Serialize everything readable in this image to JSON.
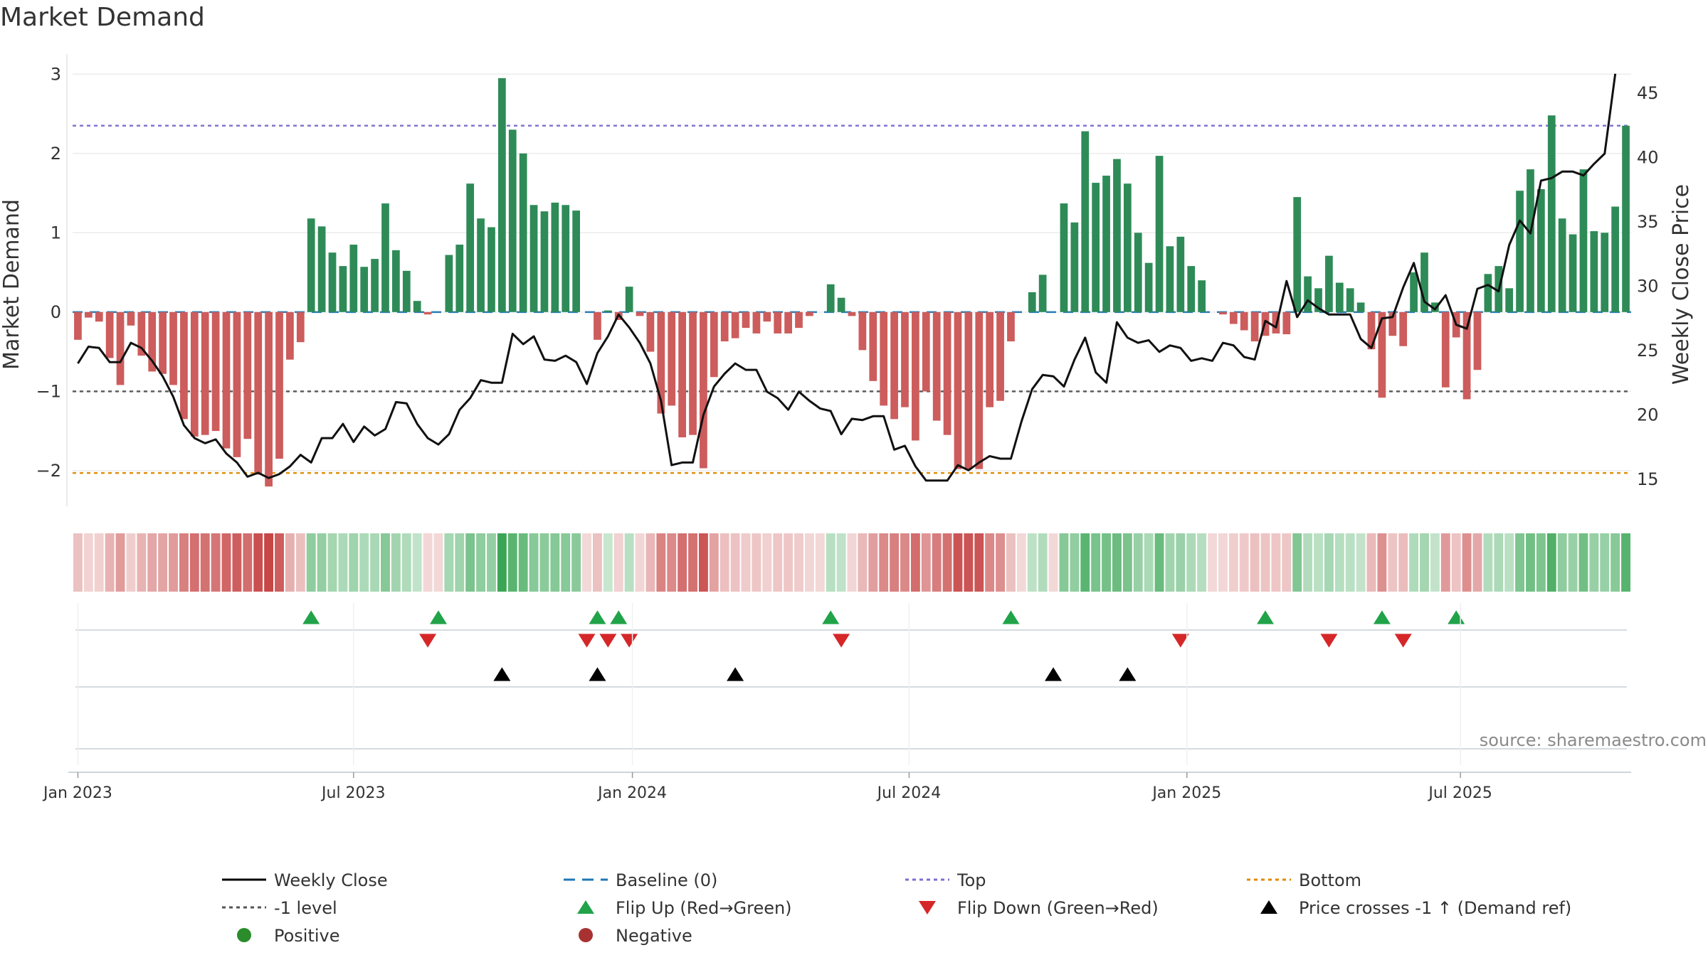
{
  "chart_data": {
    "type": "bar",
    "title": "Market Demand",
    "ylabel": "Market Demand",
    "y2label": "Weekly Close Price",
    "ylim": [
      -2.45,
      3.2
    ],
    "y2lim": [
      12.9,
      47.7
    ],
    "yticks": [
      3,
      2,
      1,
      0,
      -1,
      -2
    ],
    "ytick_labels": [
      "3",
      "2",
      "1",
      "0",
      "−1",
      "−2"
    ],
    "y2ticks": [
      45,
      40,
      35,
      30,
      25,
      20,
      15
    ],
    "x_ticks": [
      {
        "label": "Jan 2023",
        "week": 0
      },
      {
        "label": "Jul 2023",
        "week": 26
      },
      {
        "label": "Jan 2024",
        "week": 52.3
      },
      {
        "label": "Jul 2024",
        "week": 78.4
      },
      {
        "label": "Jan 2025",
        "week": 104.6
      },
      {
        "label": "Jul 2025",
        "week": 130.4
      }
    ],
    "series": [
      {
        "name": "Market Demand",
        "type": "bar",
        "values": [
          -0.35,
          -0.07,
          -0.12,
          -0.58,
          -0.92,
          -0.17,
          -0.55,
          -0.75,
          -0.78,
          -0.92,
          -1.35,
          -1.57,
          -1.55,
          -1.5,
          -1.72,
          -1.83,
          -1.6,
          -2.05,
          -2.2,
          -1.85,
          -0.6,
          -0.38,
          1.18,
          1.08,
          0.75,
          0.58,
          0.85,
          0.57,
          0.67,
          1.37,
          0.78,
          0.52,
          0.14,
          -0.03,
          0,
          0.72,
          0.85,
          1.62,
          1.18,
          1.07,
          2.95,
          2.3,
          2.0,
          1.35,
          1.27,
          1.38,
          1.35,
          1.28,
          0,
          -0.35,
          0.02,
          -0.1,
          0.32,
          -0.05,
          -0.5,
          -1.28,
          -1.18,
          -1.58,
          -1.55,
          -1.97,
          -0.82,
          -0.37,
          -0.33,
          -0.2,
          -0.27,
          -0.12,
          -0.27,
          -0.27,
          -0.2,
          -0.05,
          0,
          0.35,
          0.18,
          -0.05,
          -0.48,
          -0.87,
          -1.18,
          -1.35,
          -1.2,
          -1.62,
          -1.0,
          -1.37,
          -1.55,
          -1.98,
          -1.98,
          -1.98,
          -1.2,
          -1.12,
          -0.37,
          0,
          0.25,
          0.47,
          0,
          1.37,
          1.13,
          2.28,
          1.63,
          1.72,
          1.93,
          1.62,
          1.0,
          0.62,
          1.97,
          0.83,
          0.95,
          0.58,
          0.4,
          0,
          -0.03,
          -0.15,
          -0.23,
          -0.37,
          -0.3,
          -0.27,
          -0.28,
          1.45,
          0.45,
          0.3,
          0.71,
          0.37,
          0.3,
          0.12,
          -0.47,
          -1.08,
          -0.3,
          -0.43,
          0.5,
          0.75,
          0.12,
          -0.95,
          -0.32,
          -1.1,
          -0.73,
          0.48,
          0.58,
          0.3,
          1.53,
          1.8,
          1.55,
          2.48,
          1.18,
          0.98,
          1.8,
          1.02,
          1.0,
          1.33,
          2.35
        ]
      },
      {
        "name": "Weekly Close",
        "type": "line",
        "axis": "right",
        "values": [
          24.0,
          25.3,
          25.2,
          24.1,
          24.1,
          25.6,
          25.2,
          24.2,
          23.0,
          21.4,
          19.2,
          18.2,
          17.8,
          18.1,
          17.0,
          16.3,
          15.2,
          15.5,
          15.1,
          15.4,
          16.0,
          16.9,
          16.3,
          18.2,
          18.2,
          19.3,
          17.9,
          19.1,
          18.4,
          18.9,
          21.0,
          20.9,
          19.3,
          18.2,
          17.7,
          18.5,
          20.4,
          21.3,
          22.7,
          22.5,
          22.5,
          26.3,
          25.5,
          26.1,
          24.3,
          24.2,
          24.6,
          24.1,
          22.4,
          24.8,
          26.1,
          27.8,
          26.8,
          25.6,
          24.0,
          21.1,
          16.1,
          16.3,
          16.3,
          20.0,
          22.2,
          23.2,
          24.0,
          23.5,
          23.5,
          21.8,
          21.3,
          20.4,
          21.8,
          21.1,
          20.5,
          20.3,
          18.5,
          19.7,
          19.6,
          19.9,
          19.9,
          17.3,
          17.6,
          16.0,
          14.9,
          14.9,
          14.9,
          16.1,
          15.7,
          16.3,
          16.8,
          16.6,
          16.6,
          19.5,
          22.0,
          23.1,
          23.0,
          22.2,
          24.3,
          26.0,
          23.3,
          22.5,
          27.2,
          26.0,
          25.6,
          25.8,
          24.9,
          25.4,
          25.2,
          24.2,
          24.4,
          24.2,
          25.6,
          25.4,
          24.5,
          24.3,
          27.3,
          26.8,
          30.4,
          27.6,
          28.9,
          28.3,
          27.8,
          27.8,
          27.8,
          25.9,
          25.2,
          27.5,
          27.6,
          29.9,
          31.8,
          28.8,
          28.2,
          29.3,
          27.0,
          26.7,
          29.8,
          30.1,
          29.6,
          33.2,
          35.1,
          34.1,
          38.2,
          38.4,
          38.9,
          38.9,
          38.6,
          39.5,
          40.3,
          46.5
        ]
      }
    ],
    "reference_lines": [
      {
        "name": "Baseline (0)",
        "value": 0,
        "color": "#1f77b4"
      },
      {
        "name": "Top",
        "value": 2.35,
        "color": "#7b6fd0"
      },
      {
        "name": "-1 level",
        "value": -1,
        "color": "#555555"
      },
      {
        "name": "Bottom",
        "value": -2.03,
        "color": "#e08a00"
      }
    ],
    "flip_up_weeks": [
      22,
      34,
      49,
      51,
      71,
      88,
      112,
      123,
      130
    ],
    "flip_down_weeks": [
      33,
      48,
      50,
      52,
      72,
      104,
      118,
      125
    ],
    "price_cross_weeks": [
      40,
      49,
      62,
      92,
      99
    ],
    "colors": {
      "positive": "#2e8b57",
      "negative": "#cd5c5c",
      "price": "#111111",
      "flip_up": "#21a349",
      "flip_down": "#d62728",
      "cross": "#000000",
      "strip_pos": "#3aa655",
      "strip_neg": "#c43c3c",
      "legend_pos": "#2a8c2a",
      "legend_neg": "#a83232"
    },
    "legend": [
      {
        "label": "Weekly Close",
        "kind": "line-solid"
      },
      {
        "label": "Baseline (0)",
        "kind": "line-dash"
      },
      {
        "label": "Top",
        "kind": "line-dot-purple"
      },
      {
        "label": "Bottom",
        "kind": "line-dot-orange"
      },
      {
        "label": "-1 level",
        "kind": "line-dot-gray"
      },
      {
        "label": "Flip Up (Red→Green)",
        "kind": "tri-up-green"
      },
      {
        "label": "Flip Down (Green→Red)",
        "kind": "tri-down-red"
      },
      {
        "label": "Price crosses -1 ↑ (Demand ref)",
        "kind": "tri-up-black"
      },
      {
        "label": "Positive",
        "kind": "dot-green"
      },
      {
        "label": "Negative",
        "kind": "dot-red"
      }
    ],
    "source": "source: sharemaestro.com"
  }
}
